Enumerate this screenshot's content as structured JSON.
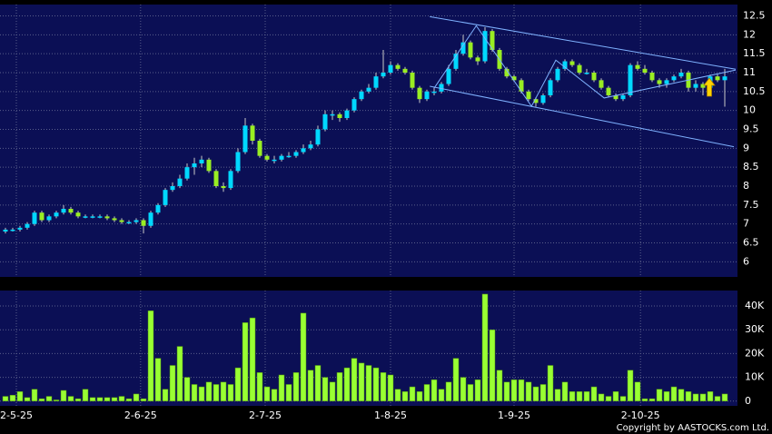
{
  "chart_data": [
    {
      "type": "candlestick",
      "up_color": "#00d8ff",
      "down_color": "#99ee22",
      "wick_color": "#c8c8c8",
      "grid": true,
      "xlim": [
        -0.75,
        100.75
      ],
      "ylim": [
        5.6,
        12.8
      ],
      "yticks": [
        6,
        6.5,
        7,
        7.5,
        8,
        8.5,
        9,
        9.5,
        10,
        10.5,
        11,
        11.5,
        12,
        12.5
      ],
      "open": [
        6.8,
        6.85,
        6.85,
        6.9,
        7.0,
        7.3,
        7.1,
        7.2,
        7.3,
        7.4,
        7.3,
        7.2,
        7.2,
        7.2,
        7.2,
        7.15,
        7.1,
        7.05,
        7.05,
        7.1,
        6.95,
        7.3,
        7.5,
        7.9,
        8.0,
        8.2,
        8.5,
        8.6,
        8.7,
        8.4,
        8.0,
        7.95,
        8.4,
        8.9,
        9.6,
        9.2,
        8.8,
        8.7,
        8.7,
        8.8,
        8.8,
        8.9,
        9.0,
        9.1,
        9.5,
        9.9,
        9.9,
        9.8,
        10.0,
        10.3,
        10.5,
        10.6,
        10.9,
        11.0,
        11.2,
        11.1,
        11.0,
        10.6,
        10.3,
        10.5,
        10.5,
        10.7,
        11.1,
        11.5,
        11.8,
        11.4,
        11.3,
        12.1,
        11.6,
        11.1,
        10.9,
        10.8,
        10.5,
        10.3,
        10.2,
        10.4,
        10.8,
        11.1,
        11.3,
        11.2,
        11.0,
        11.0,
        10.8,
        10.6,
        10.4,
        10.3,
        10.4,
        11.2,
        11.1,
        11.0,
        10.8,
        10.7,
        10.8,
        10.9,
        11.0,
        10.6,
        10.7,
        10.6,
        10.9,
        10.8
      ],
      "high": [
        6.9,
        6.9,
        6.95,
        7.05,
        7.35,
        7.35,
        7.25,
        7.35,
        7.5,
        7.45,
        7.35,
        7.25,
        7.25,
        7.25,
        7.25,
        7.2,
        7.15,
        7.1,
        7.15,
        7.15,
        7.35,
        7.55,
        7.95,
        8.1,
        8.3,
        8.6,
        8.75,
        8.8,
        8.75,
        8.45,
        8.1,
        8.45,
        9.0,
        9.8,
        9.65,
        9.25,
        8.85,
        8.8,
        8.85,
        8.9,
        8.95,
        9.1,
        9.2,
        9.6,
        10.0,
        10.0,
        9.95,
        10.05,
        10.35,
        10.55,
        10.7,
        11.0,
        11.6,
        11.3,
        11.25,
        11.15,
        11.05,
        10.65,
        10.55,
        10.6,
        10.75,
        11.2,
        11.6,
        12.0,
        11.85,
        11.45,
        12.2,
        12.15,
        11.65,
        11.15,
        10.95,
        10.85,
        10.55,
        10.35,
        10.45,
        10.85,
        11.15,
        11.35,
        11.35,
        11.25,
        11.1,
        11.05,
        10.85,
        10.65,
        10.45,
        10.45,
        11.25,
        11.3,
        11.2,
        11.05,
        10.85,
        10.85,
        10.95,
        11.1,
        11.05,
        10.8,
        10.75,
        10.95,
        10.95,
        11.1
      ],
      "low": [
        6.75,
        6.8,
        6.8,
        6.85,
        6.95,
        7.05,
        7.05,
        7.15,
        7.25,
        7.25,
        7.15,
        7.15,
        7.15,
        7.15,
        7.1,
        7.05,
        7.0,
        7.0,
        7.0,
        6.75,
        6.9,
        7.25,
        7.45,
        7.85,
        7.95,
        8.15,
        8.3,
        8.5,
        8.35,
        7.95,
        7.85,
        7.9,
        8.35,
        8.85,
        9.1,
        8.75,
        8.65,
        8.6,
        8.65,
        8.75,
        8.75,
        8.85,
        8.95,
        9.05,
        9.45,
        9.75,
        9.7,
        9.75,
        9.95,
        10.25,
        10.45,
        10.55,
        10.85,
        10.95,
        11.05,
        10.95,
        10.55,
        10.2,
        10.25,
        10.4,
        10.45,
        10.65,
        11.05,
        11.45,
        11.35,
        11.2,
        11.25,
        11.55,
        11.05,
        10.85,
        10.75,
        10.45,
        10.25,
        10.1,
        10.15,
        10.35,
        10.75,
        11.05,
        11.15,
        10.95,
        10.95,
        10.75,
        10.55,
        10.35,
        10.25,
        10.25,
        10.35,
        11.05,
        10.95,
        10.75,
        10.6,
        10.6,
        10.75,
        10.85,
        10.5,
        10.5,
        10.4,
        10.55,
        10.75,
        10.1
      ],
      "close": [
        6.85,
        6.85,
        6.9,
        7.0,
        7.3,
        7.1,
        7.2,
        7.3,
        7.4,
        7.3,
        7.2,
        7.2,
        7.2,
        7.2,
        7.15,
        7.1,
        7.05,
        7.05,
        7.1,
        6.95,
        7.3,
        7.5,
        7.9,
        8.0,
        8.2,
        8.5,
        8.6,
        8.7,
        8.4,
        8.0,
        7.95,
        8.4,
        8.9,
        9.6,
        9.2,
        8.8,
        8.7,
        8.7,
        8.8,
        8.8,
        8.9,
        9.0,
        9.1,
        9.5,
        9.9,
        9.9,
        9.8,
        10.0,
        10.3,
        10.5,
        10.6,
        10.9,
        11.0,
        11.2,
        11.1,
        11.0,
        10.6,
        10.3,
        10.5,
        10.5,
        10.7,
        11.1,
        11.5,
        11.8,
        11.4,
        11.3,
        12.1,
        11.6,
        11.1,
        10.9,
        10.8,
        10.5,
        10.3,
        10.2,
        10.4,
        10.8,
        11.1,
        11.3,
        11.2,
        11.0,
        11.0,
        10.8,
        10.6,
        10.4,
        10.3,
        10.4,
        11.2,
        11.1,
        11.0,
        10.8,
        10.7,
        10.8,
        10.9,
        11.0,
        10.6,
        10.7,
        10.6,
        10.9,
        10.8,
        10.9
      ],
      "trend_lines": [
        {
          "color": "#7fb2ff",
          "x": [
            58.4,
            100.5
          ],
          "y": [
            12.48,
            11.09
          ]
        },
        {
          "color": "#7fb2ff",
          "x": [
            58.4,
            100.25
          ],
          "y": [
            10.64,
            9.04
          ]
        },
        {
          "color": "#7fb2ff",
          "x": [
            59.0,
            64.8,
            72.4,
            75.75,
            82.4,
            100.5
          ],
          "y": [
            10.59,
            12.24,
            10.11,
            11.33,
            10.33,
            11.07
          ]
        }
      ]
    },
    {
      "type": "bar",
      "color": "#99ff33",
      "grid": true,
      "xlim": [
        -0.75,
        100.75
      ],
      "xticks": [
        {
          "value": 1.5,
          "label": "2-5-25"
        },
        {
          "value": 18.6,
          "label": "2-6-25"
        },
        {
          "value": 35.75,
          "label": "2-7-25"
        },
        {
          "value": 53,
          "label": "1-8-25"
        },
        {
          "value": 70,
          "label": "1-9-25"
        },
        {
          "value": 87.4,
          "label": "2-10-25"
        }
      ],
      "ylim": [
        -2000,
        46500
      ],
      "yticks": [
        0,
        {
          "value": 10000,
          "label": "10K"
        },
        {
          "value": 20000,
          "label": "20K"
        },
        {
          "value": 30000,
          "label": "30K"
        },
        {
          "value": 40000,
          "label": "40K"
        }
      ],
      "values": [
        2000,
        2500,
        4000,
        1500,
        5000,
        1000,
        2000,
        500,
        4500,
        2000,
        1000,
        5000,
        1500,
        1500,
        1500,
        1500,
        2000,
        1000,
        3000,
        1000,
        38000,
        18000,
        5000,
        15000,
        23000,
        10000,
        7000,
        6000,
        8000,
        7000,
        8000,
        7000,
        14000,
        33000,
        35000,
        12000,
        6000,
        5000,
        11000,
        7000,
        12000,
        37000,
        13000,
        15000,
        10000,
        8000,
        12000,
        14000,
        18000,
        16000,
        15000,
        14000,
        12000,
        11000,
        5000,
        4000,
        6000,
        4000,
        7000,
        9000,
        5000,
        8000,
        18000,
        10000,
        7000,
        9000,
        45000,
        30000,
        13000,
        8000,
        9000,
        9000,
        8000,
        6000,
        7000,
        15000,
        5000,
        8000,
        4000,
        4000,
        4000,
        6000,
        3000,
        2000,
        4000,
        2000,
        13000,
        8000,
        1000,
        1000,
        5000,
        4000,
        6000,
        5000,
        4000,
        3000,
        3000,
        4000,
        2000,
        3000
      ]
    }
  ],
  "footer": "Copyright by AASTOCKS.com Ltd."
}
